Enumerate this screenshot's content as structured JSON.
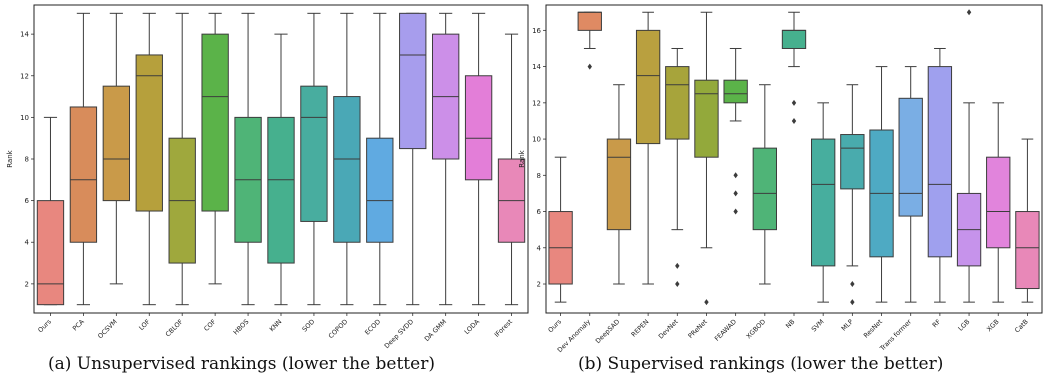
{
  "chart_data": [
    {
      "type": "box",
      "ylabel": "Rank",
      "ylim": [
        0.6,
        15.4
      ],
      "yticks": [
        2,
        4,
        6,
        8,
        10,
        12,
        14
      ],
      "categories": [
        "Ours",
        "PCA",
        "OCSVM",
        "LOF",
        "CBLOF",
        "COF",
        "HBOS",
        "KNN",
        "SOD",
        "COPOD",
        "ECOD",
        "Deep SVDD",
        "DA GMM",
        "LODA",
        "IForest"
      ],
      "colors": [
        "#e8877f",
        "#d88c5b",
        "#c99a49",
        "#b6a03c",
        "#9fa83d",
        "#5bb349",
        "#4fb477",
        "#46b08e",
        "#48ad9f",
        "#4aa8b6",
        "#60aae1",
        "#a79ded",
        "#cc8fe8",
        "#e37ed8",
        "#e888b8"
      ],
      "boxes": [
        {
          "min": 1,
          "q1": 1,
          "median": 2,
          "q3": 6,
          "max": 10,
          "outliers": []
        },
        {
          "min": 1,
          "q1": 4,
          "median": 7,
          "q3": 10.5,
          "max": 15,
          "outliers": []
        },
        {
          "min": 2,
          "q1": 6,
          "median": 8,
          "q3": 11.5,
          "max": 15,
          "outliers": []
        },
        {
          "min": 1,
          "q1": 5.5,
          "median": 12,
          "q3": 13,
          "max": 15,
          "outliers": []
        },
        {
          "min": 1,
          "q1": 3,
          "median": 6,
          "q3": 9,
          "max": 15,
          "outliers": []
        },
        {
          "min": 2,
          "q1": 5.5,
          "median": 11,
          "q3": 14,
          "max": 15,
          "outliers": []
        },
        {
          "min": 1,
          "q1": 4,
          "median": 7,
          "q3": 10,
          "max": 15,
          "outliers": []
        },
        {
          "min": 1,
          "q1": 3,
          "median": 7,
          "q3": 10,
          "max": 14,
          "outliers": []
        },
        {
          "min": 1,
          "q1": 5,
          "median": 10,
          "q3": 11.5,
          "max": 15,
          "outliers": []
        },
        {
          "min": 1,
          "q1": 4,
          "median": 8,
          "q3": 11,
          "max": 15,
          "outliers": []
        },
        {
          "min": 1,
          "q1": 4,
          "median": 6,
          "q3": 9,
          "max": 15,
          "outliers": []
        },
        {
          "min": 1,
          "q1": 8.5,
          "median": 13,
          "q3": 15,
          "max": 15,
          "outliers": []
        },
        {
          "min": 1,
          "q1": 8,
          "median": 11,
          "q3": 14,
          "max": 15,
          "outliers": []
        },
        {
          "min": 1,
          "q1": 7,
          "median": 9,
          "q3": 12,
          "max": 15,
          "outliers": []
        },
        {
          "min": 1,
          "q1": 4,
          "median": 6,
          "q3": 8,
          "max": 14,
          "outliers": []
        }
      ],
      "caption": "(a) Unsupervised rankings (lower the better)"
    },
    {
      "type": "box",
      "ylabel": "Rank",
      "ylim": [
        0.4,
        17.4
      ],
      "yticks": [
        2,
        4,
        6,
        8,
        10,
        12,
        14,
        16
      ],
      "categories": [
        "Ours",
        "Dev Anomaly",
        "DeepSAD",
        "REPEN",
        "DevNet",
        "PReNet",
        "FEAWAD",
        "XGBOD",
        "NB",
        "SVM",
        "MLP",
        "ResNet",
        "Trans former",
        "RF",
        "LGB",
        "XGB",
        "CatB"
      ],
      "colors": [
        "#e8877f",
        "#df8a63",
        "#c99a49",
        "#b9a03f",
        "#a7a43b",
        "#93a93b",
        "#5bb349",
        "#4fb477",
        "#46b08e",
        "#47ae9e",
        "#49abad",
        "#4eaac3",
        "#7aaee4",
        "#9fa0ee",
        "#c693eb",
        "#e184dc",
        "#e888b8"
      ],
      "boxes": [
        {
          "min": 1,
          "q1": 2,
          "median": 4,
          "q3": 6,
          "max": 9,
          "outliers": []
        },
        {
          "min": 15,
          "q1": 16,
          "median": 17,
          "q3": 17,
          "max": 17,
          "outliers": [
            14
          ]
        },
        {
          "min": 2,
          "q1": 5,
          "median": 9,
          "q3": 10,
          "max": 13,
          "outliers": []
        },
        {
          "min": 2,
          "q1": 9.75,
          "median": 13.5,
          "q3": 16,
          "max": 17,
          "outliers": []
        },
        {
          "min": 5,
          "q1": 10,
          "median": 13,
          "q3": 14,
          "max": 15,
          "outliers": [
            2,
            3
          ]
        },
        {
          "min": 4,
          "q1": 9,
          "median": 12.5,
          "q3": 13.25,
          "max": 17,
          "outliers": [
            1
          ]
        },
        {
          "min": 11,
          "q1": 12,
          "median": 12.5,
          "q3": 13.25,
          "max": 15,
          "outliers": [
            6,
            7,
            8
          ]
        },
        {
          "min": 2,
          "q1": 5,
          "median": 7,
          "q3": 9.5,
          "max": 13,
          "outliers": []
        },
        {
          "min": 14,
          "q1": 15,
          "median": 16,
          "q3": 16,
          "max": 17,
          "outliers": [
            11,
            12
          ]
        },
        {
          "min": 1,
          "q1": 3,
          "median": 7.5,
          "q3": 10,
          "max": 12,
          "outliers": []
        },
        {
          "min": 3,
          "q1": 7.25,
          "median": 9.5,
          "q3": 10.25,
          "max": 13,
          "outliers": [
            1,
            2
          ]
        },
        {
          "min": 1,
          "q1": 3.5,
          "median": 7,
          "q3": 10.5,
          "max": 14,
          "outliers": []
        },
        {
          "min": 1,
          "q1": 5.75,
          "median": 7,
          "q3": 12.25,
          "max": 14,
          "outliers": []
        },
        {
          "min": 1,
          "q1": 3.5,
          "median": 7.5,
          "q3": 14,
          "max": 15,
          "outliers": []
        },
        {
          "min": 1,
          "q1": 3,
          "median": 5,
          "q3": 7,
          "max": 12,
          "outliers": [
            17
          ]
        },
        {
          "min": 1,
          "q1": 4,
          "median": 6,
          "q3": 9,
          "max": 12,
          "outliers": []
        },
        {
          "min": 1,
          "q1": 1.75,
          "median": 4,
          "q3": 6,
          "max": 10,
          "outliers": []
        }
      ],
      "caption": "(b) Supervised rankings (lower the better)"
    }
  ]
}
